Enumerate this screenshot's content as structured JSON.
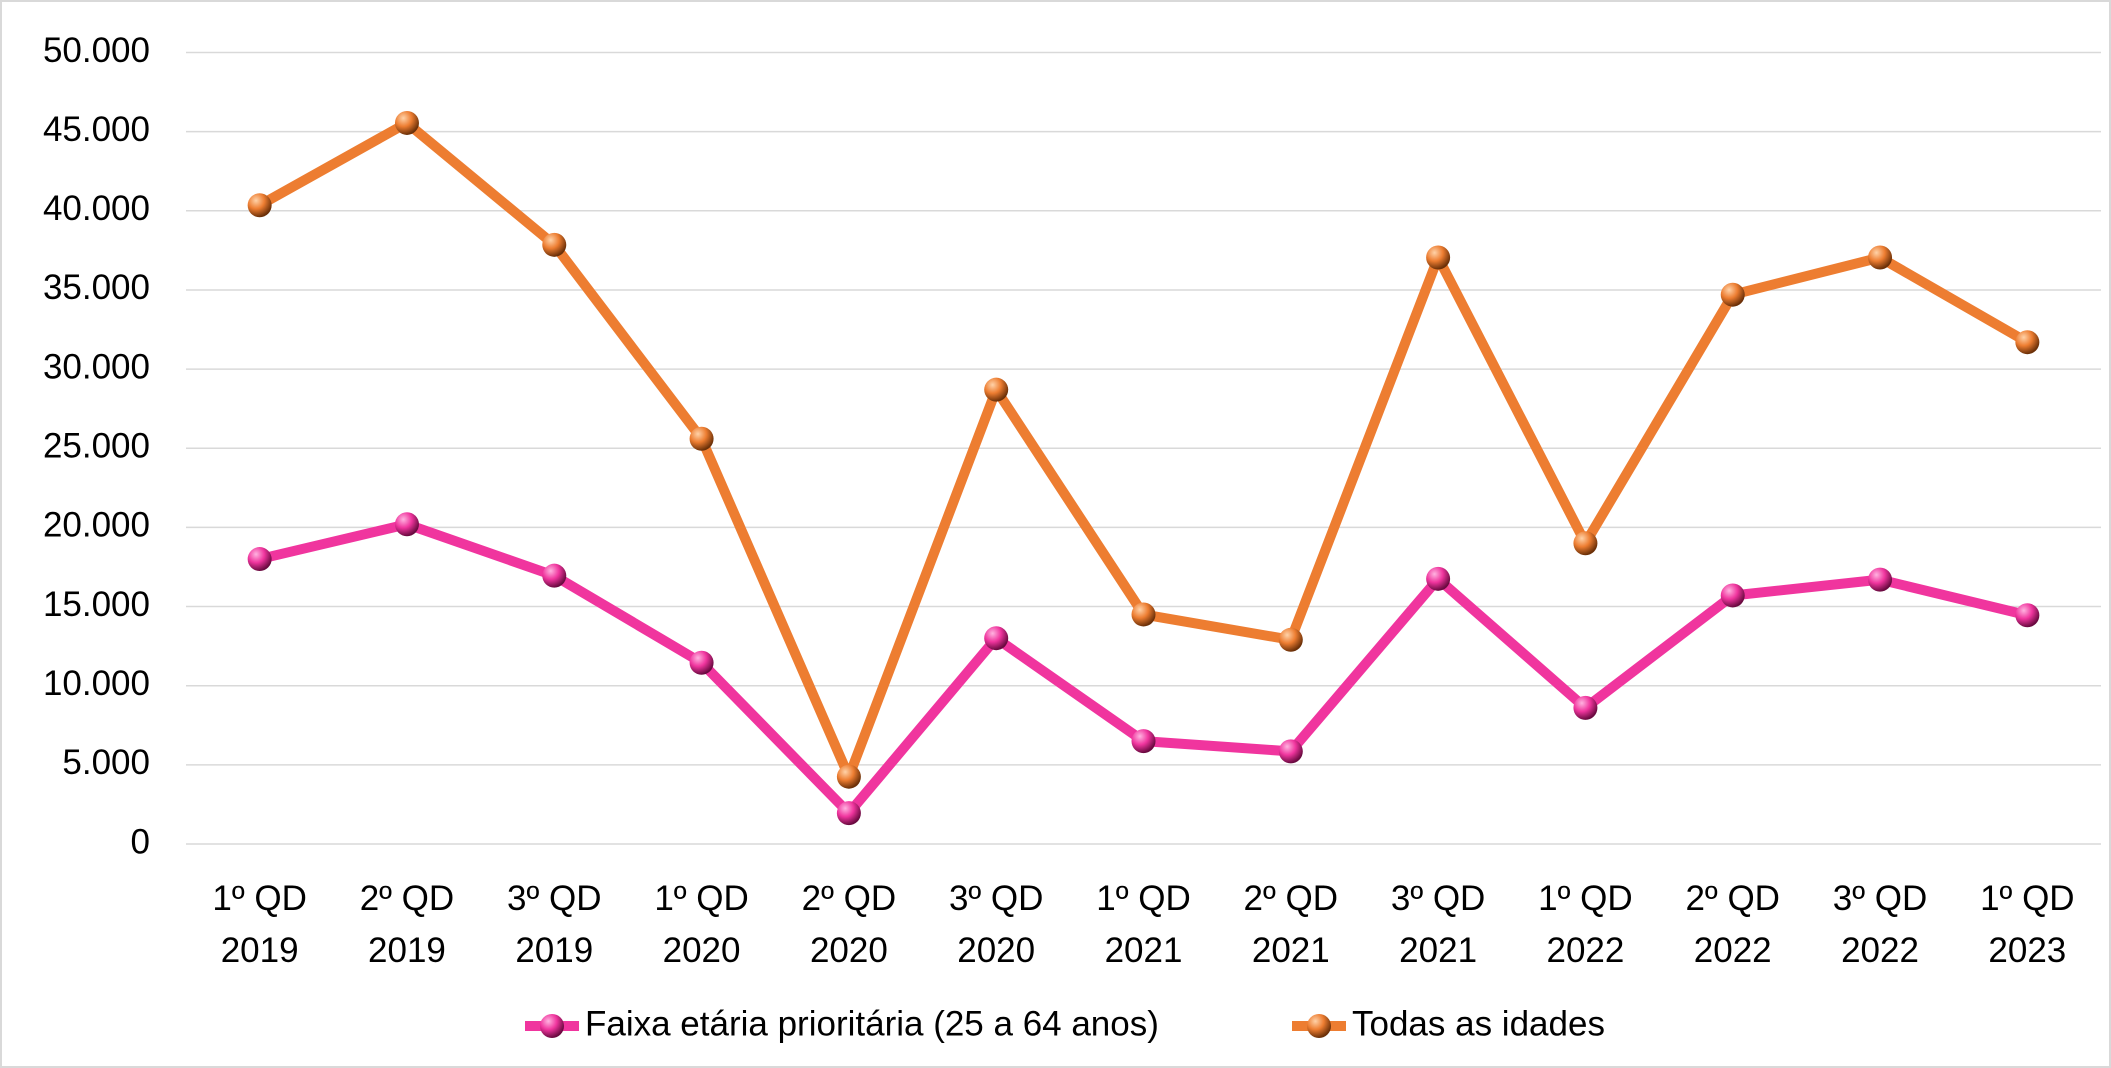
{
  "chart_data": {
    "type": "line",
    "categories": [
      "1º QD 2019",
      "2º QD 2019",
      "3º QD 2019",
      "1º QD 2020",
      "2º QD 2020",
      "3º QD 2020",
      "1º QD 2021",
      "2º QD 2021",
      "3º QD 2021",
      "1º QD 2022",
      "2º QD 2022",
      "3º QD 2022",
      "1º QD 2023"
    ],
    "series": [
      {
        "name": "Faixa etária prioritária (25 a 64 anos)",
        "color": "#f0359e",
        "values": [
          18000,
          20200,
          16950,
          11450,
          1950,
          13000,
          6500,
          5850,
          16750,
          8600,
          15700,
          16700,
          14450
        ]
      },
      {
        "name": "Todas as idades",
        "color": "#ed7d31",
        "values": [
          40350,
          45550,
          37850,
          25600,
          4250,
          28700,
          14500,
          12900,
          37050,
          19000,
          34700,
          37050,
          31700
        ]
      }
    ],
    "ylim": [
      0,
      50000
    ],
    "yticks": [
      0,
      {
        "value": 5000,
        "label": "5.000"
      },
      {
        "value": 10000,
        "label": "10.000"
      },
      {
        "value": 15000,
        "label": "15.000"
      },
      {
        "value": 20000,
        "label": "20.000"
      },
      {
        "value": 25000,
        "label": "25.000"
      },
      {
        "value": 30000,
        "label": "30.000"
      },
      {
        "value": 35000,
        "label": "35.000"
      },
      {
        "value": 40000,
        "label": "40.000"
      },
      {
        "value": 45000,
        "label": "45.000"
      },
      {
        "value": 50000,
        "label": "50.000"
      }
    ],
    "grid": true,
    "legend": "bottom"
  }
}
